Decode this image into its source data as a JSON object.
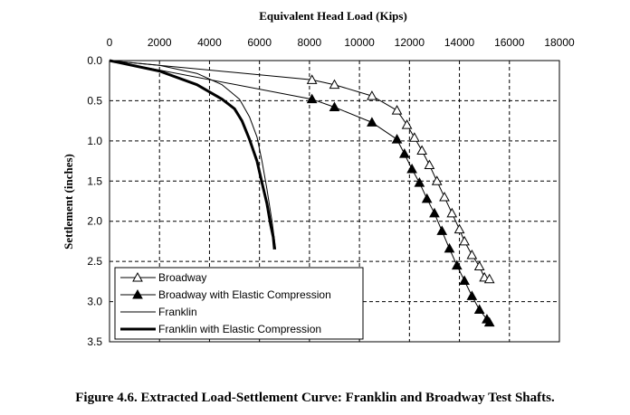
{
  "caption": "Figure 4.6. Extracted Load-Settlement Curve: Franklin and Broadway Test Shafts.",
  "chart_data": {
    "type": "line",
    "title": "",
    "xlabel": "Equivalent Head  Load (Kips)",
    "ylabel": "Settlement (inches)",
    "x_axis_position": "top",
    "y_inverted": true,
    "xlim": [
      0,
      18000
    ],
    "ylim": [
      0,
      3.5
    ],
    "xticks": [
      0,
      2000,
      4000,
      6000,
      8000,
      10000,
      12000,
      14000,
      16000,
      18000
    ],
    "yticks": [
      "0.0",
      "0.5",
      "1.0",
      "1.5",
      "2.0",
      "2.5",
      "3.0",
      "3.5"
    ],
    "grid": "dashed",
    "legend_position": "bottom-left",
    "series": [
      {
        "name": "Broadway",
        "marker": "open-triangle",
        "line_width": 1,
        "points": [
          [
            0,
            0
          ],
          [
            8100,
            0.24
          ],
          [
            9000,
            0.3
          ],
          [
            10500,
            0.44
          ],
          [
            11500,
            0.62
          ],
          [
            11900,
            0.8
          ],
          [
            12200,
            0.96
          ],
          [
            12500,
            1.12
          ],
          [
            12800,
            1.3
          ],
          [
            13100,
            1.5
          ],
          [
            13400,
            1.7
          ],
          [
            13700,
            1.9
          ],
          [
            14000,
            2.1
          ],
          [
            14200,
            2.25
          ],
          [
            14500,
            2.42
          ],
          [
            14800,
            2.56
          ],
          [
            15000,
            2.7
          ],
          [
            15200,
            2.72
          ]
        ]
      },
      {
        "name": "Broadway with Elastic Compression",
        "marker": "filled-triangle",
        "line_width": 1,
        "points": [
          [
            0,
            0
          ],
          [
            8100,
            0.48
          ],
          [
            9000,
            0.58
          ],
          [
            10500,
            0.77
          ],
          [
            11500,
            0.98
          ],
          [
            11800,
            1.16
          ],
          [
            12100,
            1.35
          ],
          [
            12400,
            1.52
          ],
          [
            12700,
            1.72
          ],
          [
            13000,
            1.9
          ],
          [
            13300,
            2.12
          ],
          [
            13600,
            2.34
          ],
          [
            13900,
            2.55
          ],
          [
            14200,
            2.74
          ],
          [
            14500,
            2.93
          ],
          [
            14800,
            3.1
          ],
          [
            15100,
            3.22
          ],
          [
            15200,
            3.26
          ]
        ]
      },
      {
        "name": "Franklin",
        "marker": "none",
        "line_width": 1,
        "points": [
          [
            0,
            0
          ],
          [
            2000,
            0.06
          ],
          [
            3500,
            0.16
          ],
          [
            4500,
            0.3
          ],
          [
            5200,
            0.48
          ],
          [
            5600,
            0.7
          ],
          [
            5900,
            0.95
          ],
          [
            6100,
            1.25
          ],
          [
            6300,
            1.6
          ],
          [
            6500,
            2.0
          ],
          [
            6650,
            2.35
          ]
        ]
      },
      {
        "name": "Franklin with Elastic Compression",
        "marker": "none",
        "line_width": 3,
        "points": [
          [
            0,
            0
          ],
          [
            2000,
            0.13
          ],
          [
            3500,
            0.3
          ],
          [
            4500,
            0.48
          ],
          [
            5000,
            0.6
          ],
          [
            5300,
            0.75
          ],
          [
            5600,
            0.98
          ],
          [
            5900,
            1.25
          ],
          [
            6100,
            1.52
          ],
          [
            6300,
            1.78
          ],
          [
            6450,
            2.05
          ],
          [
            6550,
            2.2
          ],
          [
            6600,
            2.35
          ]
        ]
      }
    ]
  }
}
